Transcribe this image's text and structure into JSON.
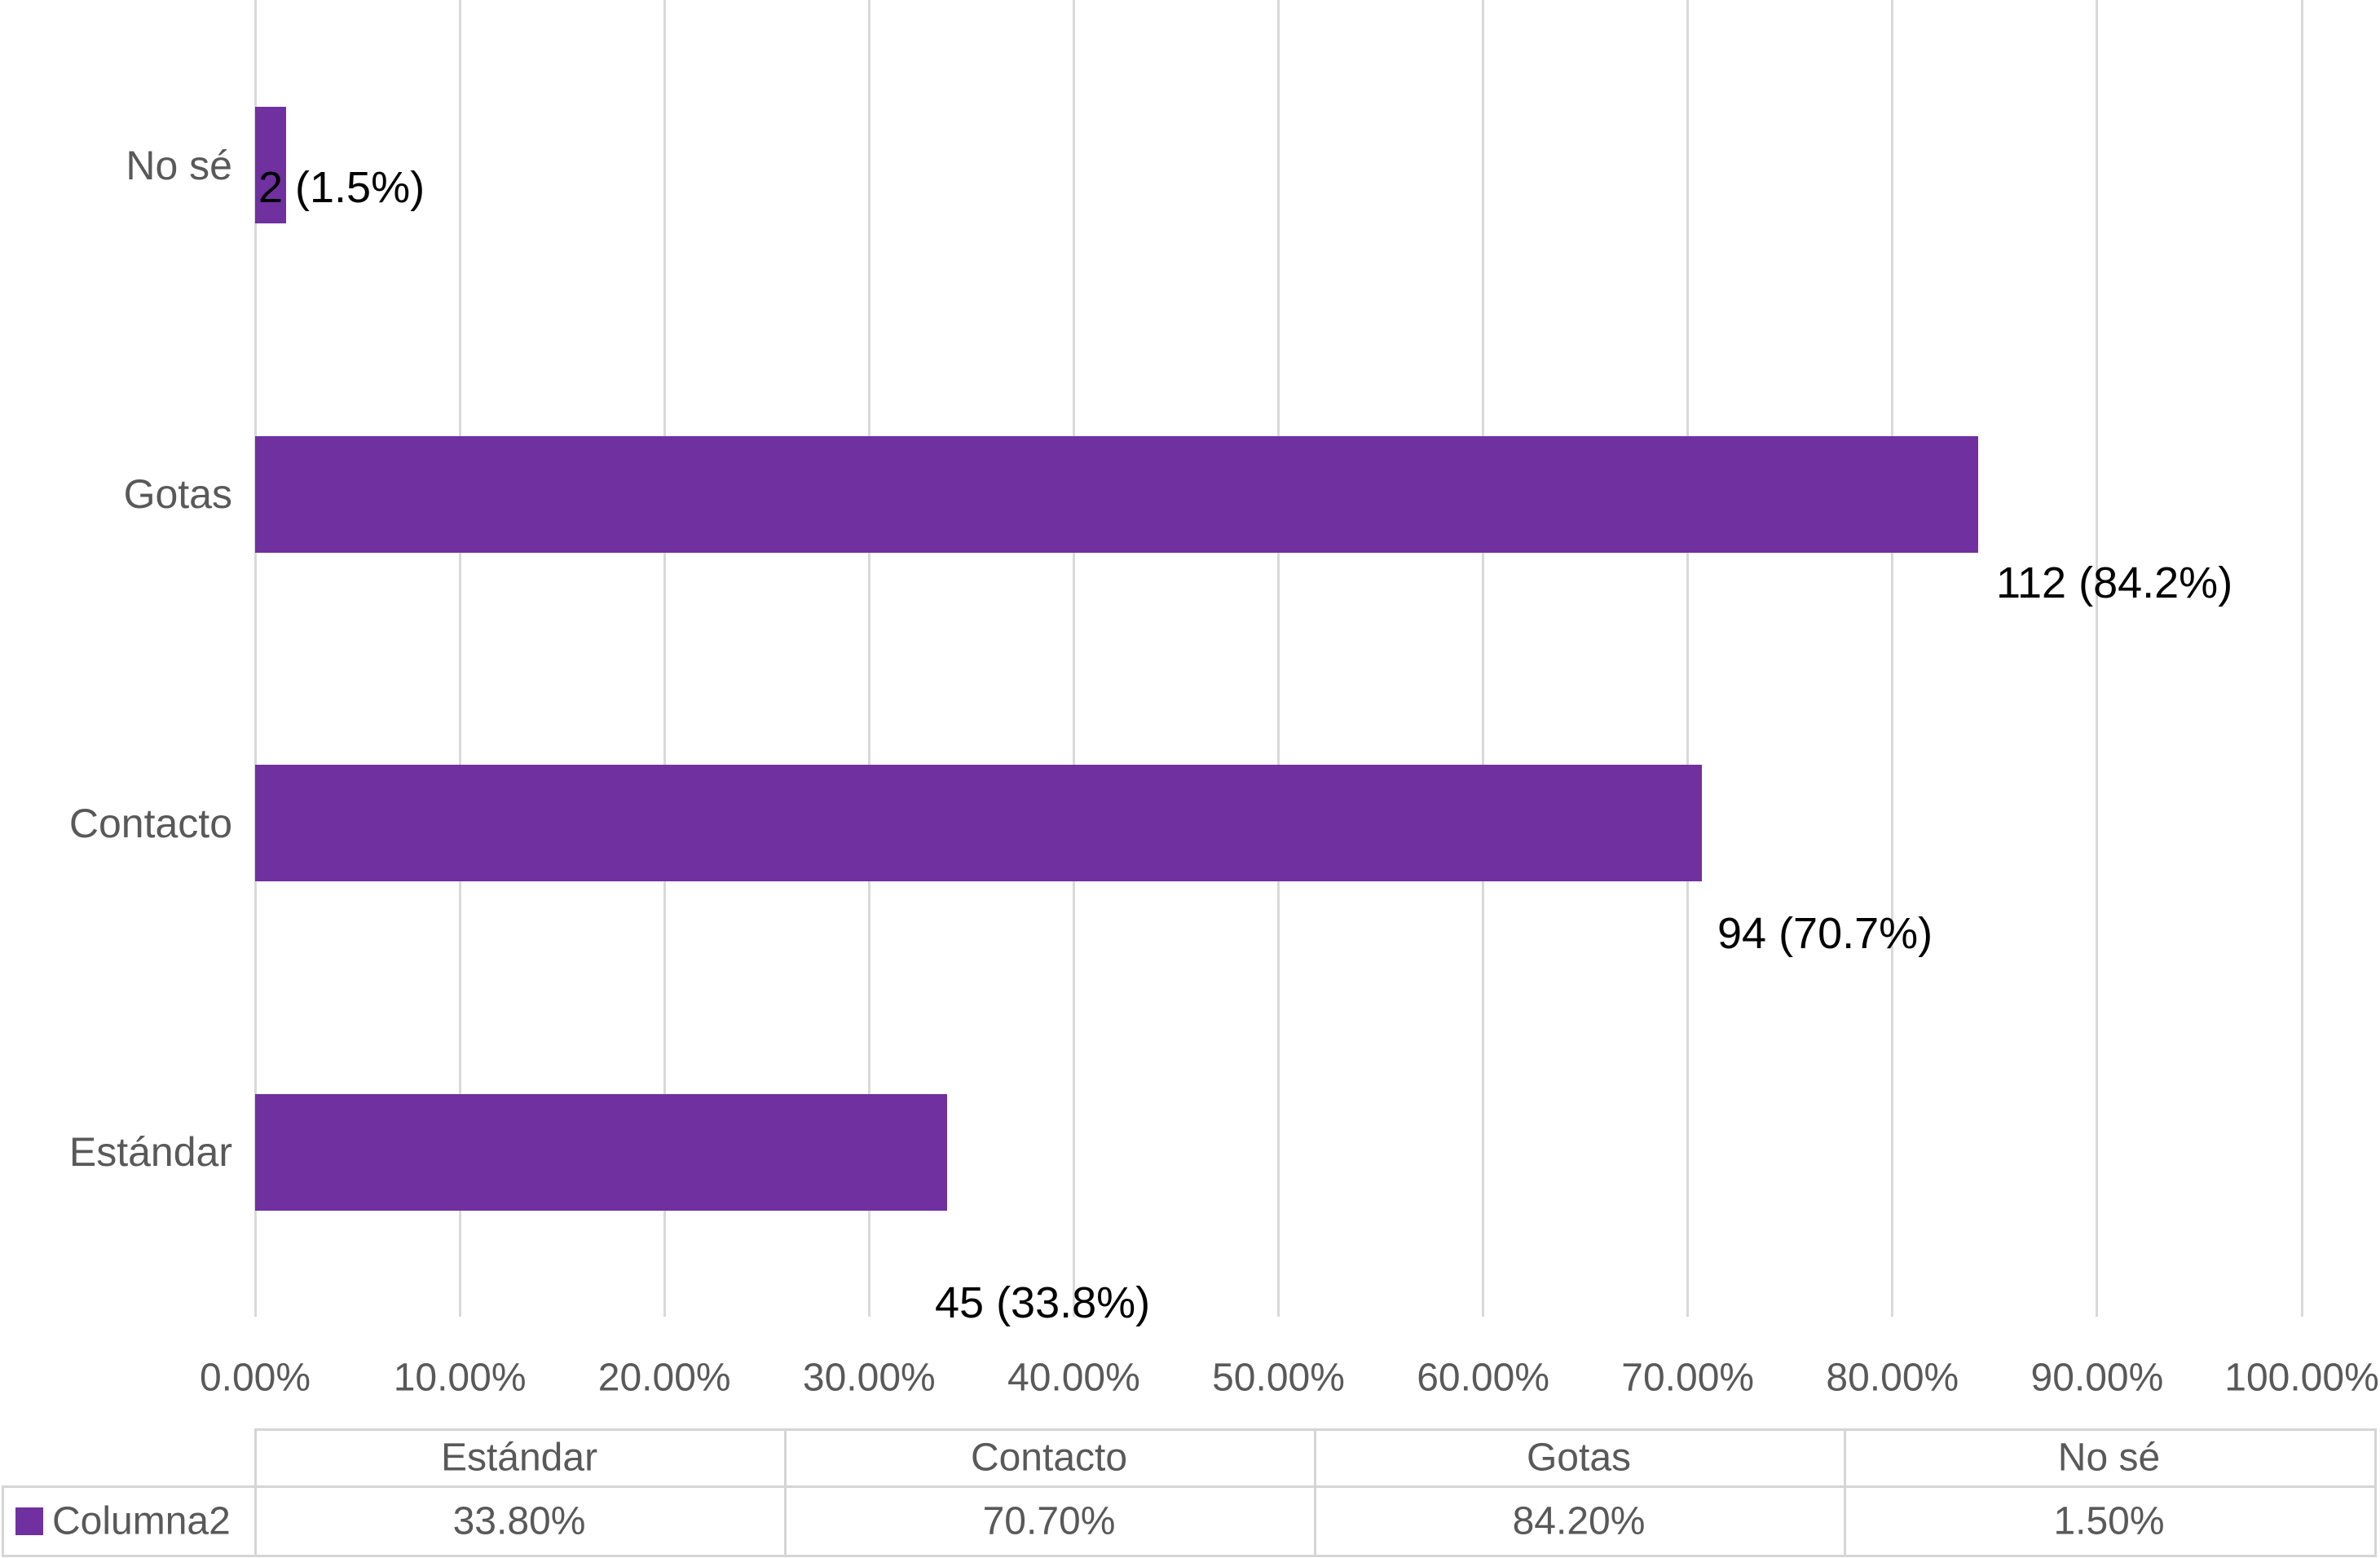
{
  "chart_data": {
    "type": "bar",
    "orientation": "horizontal",
    "title": "",
    "categories": [
      "No sé",
      "Gotas",
      "Contacto",
      "Estándar"
    ],
    "series": [
      {
        "name": "Columna2",
        "values_percent": [
          1.5,
          84.2,
          70.7,
          33.8
        ],
        "counts": [
          2,
          112,
          94,
          45
        ]
      }
    ],
    "data_labels": [
      "2 (1.5%)",
      "112 (84.2%)",
      "94 (70.7%)",
      "45 (33.8%)"
    ],
    "x_axis": {
      "ticks": [
        "0.00%",
        "10.00%",
        "20.00%",
        "30.00%",
        "40.00%",
        "50.00%",
        "60.00%",
        "70.00%",
        "80.00%",
        "90.00%",
        "100.00%"
      ],
      "tick_values": [
        0,
        10,
        20,
        30,
        40,
        50,
        60,
        70,
        80,
        90,
        100
      ],
      "min": 0,
      "max": 100,
      "grid": true
    },
    "legend_position": "bottom-left"
  },
  "data_table": {
    "legend_label": "Columna2",
    "columns": [
      "Estándar",
      "Contacto",
      "Gotas",
      "No sé"
    ],
    "rows": [
      {
        "label": "Columna2",
        "values": [
          "33.80%",
          "70.70%",
          "84.20%",
          "1.50%"
        ]
      }
    ]
  },
  "colors": {
    "bar": "#7030A0",
    "gridline": "#D9D9D9",
    "axis_text": "#595959",
    "category_text": "#595959",
    "data_label_text": "#000000",
    "table_border": "#D5D5D5",
    "table_text": "#595959",
    "legend_text": "#595959",
    "background": "#FFFFFF"
  }
}
